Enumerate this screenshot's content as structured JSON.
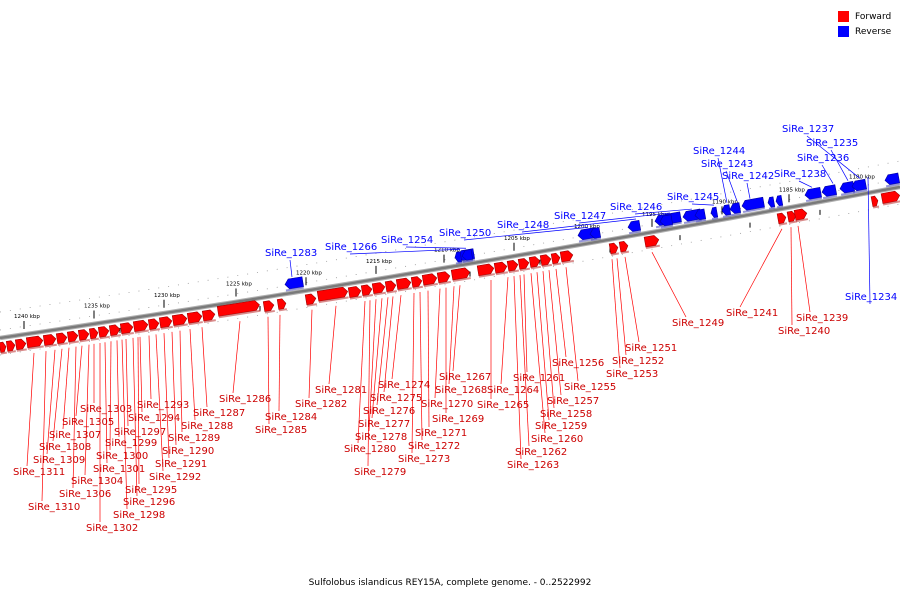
{
  "legend": [
    {
      "label": "Forward",
      "color": "#ff0000"
    },
    {
      "label": "Reverse",
      "color": "#0000ff"
    }
  ],
  "caption": "Sulfolobus islandicus REY15A, complete genome. - 0..2522992",
  "ticks": [
    "1180 kbp",
    "1185 kbp",
    "1190 kbp",
    "1195 kbp",
    "1200 kbp",
    "1205 kbp",
    "1210 kbp",
    "1215 kbp",
    "1220 kbp",
    "1225 kbp",
    "1230 kbp",
    "1235 kbp",
    "1240 kbp"
  ],
  "reverse_genes": [
    "SiRe_1234",
    "SiRe_1235",
    "SiRe_1236",
    "SiRe_1237",
    "SiRe_1238",
    "SiRe_1242",
    "SiRe_1243",
    "SiRe_1244",
    "SiRe_1245",
    "SiRe_1246",
    "SiRe_1247",
    "SiRe_1248",
    "SiRe_1250",
    "SiRe_1254",
    "SiRe_1266",
    "SiRe_1283"
  ],
  "forward_genes": [
    "SiRe_1239",
    "SiRe_1240",
    "SiRe_1241",
    "SiRe_1249",
    "SiRe_1251",
    "SiRe_1252",
    "SiRe_1253",
    "SiRe_1255",
    "SiRe_1256",
    "SiRe_1257",
    "SiRe_1258",
    "SiRe_1259",
    "SiRe_1260",
    "SiRe_1261",
    "SiRe_1262",
    "SiRe_1263",
    "SiRe_1264",
    "SiRe_1265",
    "SiRe_1267",
    "SiRe_1268",
    "SiRe_1269",
    "SiRe_1270",
    "SiRe_1271",
    "SiRe_1272",
    "SiRe_1273",
    "SiRe_1274",
    "SiRe_1275",
    "SiRe_1276",
    "SiRe_1277",
    "SiRe_1278",
    "SiRe_1279",
    "SiRe_1280",
    "SiRe_1281",
    "SiRe_1282",
    "SiRe_1284",
    "SiRe_1285",
    "SiRe_1286",
    "SiRe_1287",
    "SiRe_1288",
    "SiRe_1289",
    "SiRe_1290",
    "SiRe_1291",
    "SiRe_1292",
    "SiRe_1293",
    "SiRe_1294",
    "SiRe_1295",
    "SiRe_1296",
    "SiRe_1297",
    "SiRe_1298",
    "SiRe_1299",
    "SiRe_1300",
    "SiRe_1301",
    "SiRe_1302",
    "SiRe_1303",
    "SiRe_1304",
    "SiRe_1305",
    "SiRe_1306",
    "SiRe_1307",
    "SiRe_1308",
    "SiRe_1309",
    "SiRe_1310",
    "SiRe_1311"
  ]
}
